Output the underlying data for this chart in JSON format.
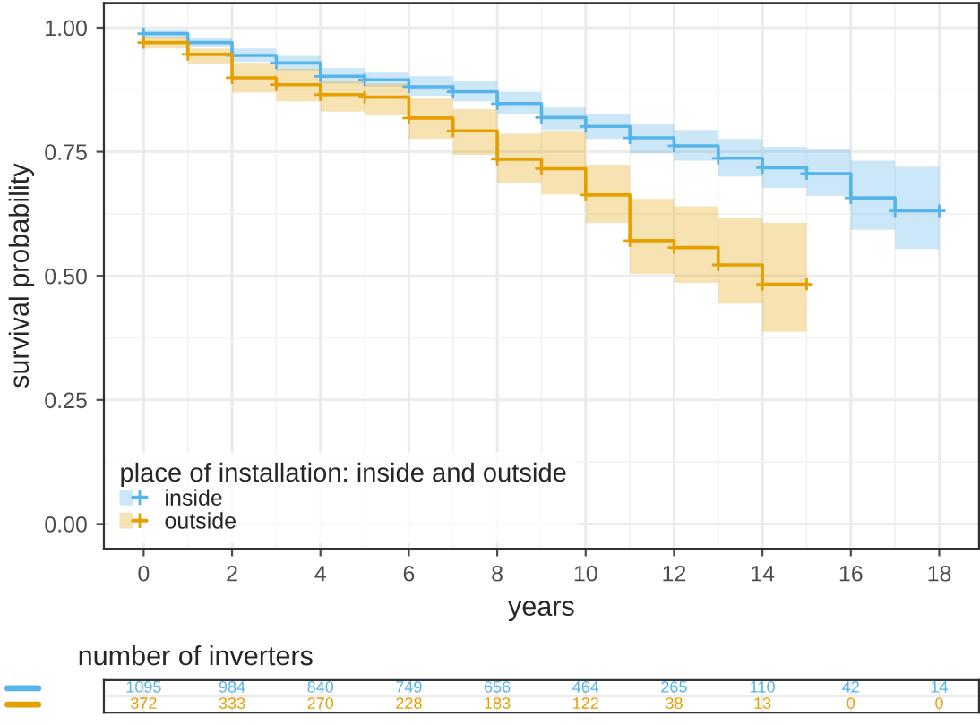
{
  "chart_data": [
    {
      "type": "step",
      "xlabel": "years",
      "ylabel": "survival probability",
      "legend_title": "place of installation: inside and outside",
      "x": [
        0,
        1,
        2,
        3,
        4,
        5,
        6,
        7,
        8,
        9,
        10,
        11,
        12,
        13,
        14,
        15,
        16,
        17,
        18
      ],
      "series": [
        {
          "name": "inside",
          "color": "#56b4e9",
          "values": [
            0.988,
            0.97,
            0.944,
            0.929,
            0.902,
            0.895,
            0.881,
            0.871,
            0.847,
            0.819,
            0.801,
            0.778,
            0.762,
            0.737,
            0.718,
            0.706,
            0.657,
            0.631,
            0.631
          ],
          "lower": [
            0.978,
            0.962,
            0.931,
            0.914,
            0.887,
            0.881,
            0.863,
            0.851,
            0.827,
            0.794,
            0.776,
            0.747,
            0.732,
            0.7,
            0.677,
            0.661,
            0.593,
            0.554,
            0.554
          ],
          "upper": [
            0.995,
            0.979,
            0.958,
            0.943,
            0.919,
            0.911,
            0.902,
            0.893,
            0.871,
            0.839,
            0.827,
            0.807,
            0.794,
            0.776,
            0.76,
            0.756,
            0.732,
            0.72,
            0.72
          ]
        },
        {
          "name": "outside",
          "color": "#e69f00",
          "values": [
            0.97,
            0.946,
            0.899,
            0.885,
            0.865,
            0.86,
            0.818,
            0.792,
            0.735,
            0.716,
            0.663,
            0.571,
            0.557,
            0.522,
            0.483,
            0.483,
            null,
            null,
            null
          ],
          "lower": [
            0.958,
            0.926,
            0.869,
            0.851,
            0.831,
            0.824,
            0.776,
            0.744,
            0.687,
            0.664,
            0.607,
            0.504,
            0.486,
            0.444,
            0.387,
            0.387,
            null,
            null,
            null
          ],
          "upper": [
            0.982,
            0.958,
            0.929,
            0.917,
            0.893,
            0.887,
            0.857,
            0.836,
            0.786,
            0.792,
            0.724,
            0.655,
            0.64,
            0.617,
            0.607,
            0.607,
            null,
            null,
            null
          ]
        }
      ],
      "xlim": [
        -0.9,
        18.9
      ],
      "xticks": [
        0,
        2,
        4,
        6,
        8,
        10,
        12,
        14,
        16,
        18
      ],
      "ylim": [
        -0.05,
        1.05
      ],
      "yticks": [
        {
          "value": 0,
          "label": "0.00"
        },
        {
          "value": 0.25,
          "label": "0.25"
        },
        {
          "value": 0.5,
          "label": "0.50"
        },
        {
          "value": 0.75,
          "label": "0.75"
        },
        {
          "value": 1,
          "label": "1.00"
        }
      ],
      "grid": true,
      "legend": "bottom left",
      "marker": "cross",
      "line_style": "solid"
    },
    {
      "type": "other",
      "title": "number of inverters",
      "colors": [
        "#56b4e9",
        "#e69f00"
      ],
      "annotations": [
        "1095",
        "984",
        "840",
        "749",
        "656",
        "464",
        "265",
        "110",
        "42",
        "14",
        "372",
        "333",
        "270",
        "228",
        "183",
        "122",
        "38",
        "13",
        "0",
        "0"
      ]
    }
  ]
}
